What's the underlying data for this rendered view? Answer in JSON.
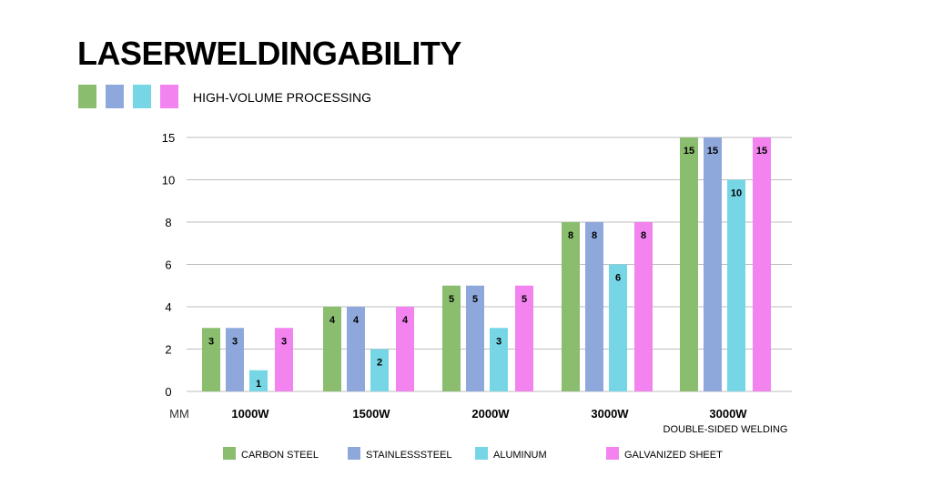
{
  "header": {
    "title": "LASERWELDINGABILITY",
    "subtitle": "HIGH-VOLUME PROCESSING"
  },
  "chart_data": {
    "type": "bar",
    "title": "LASERWELDINGABILITY",
    "ylabel": "MM",
    "xlabel": "",
    "yticks": [
      0,
      2,
      4,
      6,
      8,
      10,
      15
    ],
    "ylim": [
      0,
      15
    ],
    "grid": true,
    "legend_position": "bottom",
    "categories": [
      "1000W",
      "1500W",
      "2000W",
      "3000W",
      "3000W"
    ],
    "category_sublabels": [
      "",
      "",
      "",
      "",
      "DOUBLE-SIDED WELDING"
    ],
    "series": [
      {
        "name": "CARBON STEEL",
        "color": "#8bbd6e",
        "values": [
          3,
          4,
          5,
          8,
          15
        ]
      },
      {
        "name": "STAINLESSSTEEL",
        "color": "#8fa8dc",
        "values": [
          3,
          4,
          5,
          8,
          15
        ]
      },
      {
        "name": "ALUMINUM",
        "color": "#76d6e6",
        "values": [
          1,
          2,
          3,
          6,
          10
        ]
      },
      {
        "name": "GALVANIZED SHEET",
        "color": "#f283ef",
        "values": [
          3,
          4,
          5,
          8,
          15
        ]
      }
    ]
  }
}
